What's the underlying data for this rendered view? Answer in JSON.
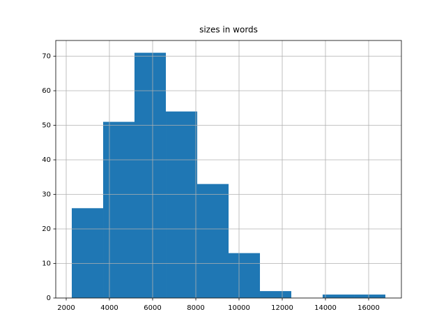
{
  "chart_data": {
    "type": "histogram",
    "title": "sizes in words",
    "bins": [
      2258,
      3710,
      5161,
      6613,
      8065,
      9516,
      10968,
      12419,
      13871,
      15323,
      16774
    ],
    "values": [
      26,
      51,
      71,
      54,
      33,
      13,
      2,
      0,
      1,
      1
    ],
    "color": "#1f77b4",
    "xlim": [
      1516,
      17516
    ],
    "xticks": [
      2000,
      4000,
      6000,
      8000,
      10000,
      12000,
      14000,
      16000
    ],
    "ylim": [
      0,
      74.55
    ],
    "yticks": [
      0,
      10,
      20,
      30,
      40,
      50,
      60,
      70
    ],
    "grid": true
  }
}
